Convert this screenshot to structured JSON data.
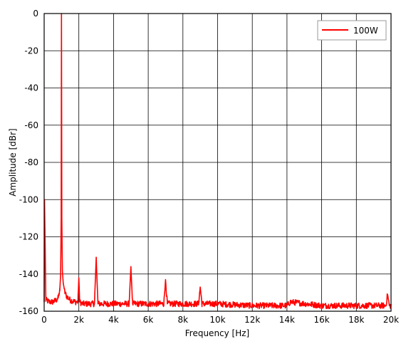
{
  "chart_data": {
    "type": "line",
    "title": "",
    "xlabel": "Frequency [Hz]",
    "ylabel": "Amplitude [dBr]",
    "xlim": [
      0,
      20000
    ],
    "ylim": [
      -160,
      0
    ],
    "x_ticks": [
      0,
      2000,
      4000,
      6000,
      8000,
      10000,
      12000,
      14000,
      16000,
      18000,
      20000
    ],
    "x_tick_labels": [
      "0",
      "2k",
      "4k",
      "6k",
      "8k",
      "10k",
      "12k",
      "14k",
      "16k",
      "18k",
      "20k"
    ],
    "y_ticks": [
      0,
      -20,
      -40,
      -60,
      -80,
      -100,
      -120,
      -140,
      -160
    ],
    "y_tick_labels": [
      "0",
      "-20",
      "-40",
      "-60",
      "-80",
      "-100",
      "-120",
      "-140",
      "-160"
    ],
    "grid": true,
    "legend": {
      "position": "top-right",
      "entries": [
        "100W"
      ]
    },
    "line_color": "#ff0000",
    "series": [
      {
        "name": "100W",
        "color": "#ff0000",
        "noise_floor_db": -156,
        "x": [
          0,
          20,
          100,
          300,
          500,
          700,
          800,
          900,
          950,
          980,
          1000,
          1020,
          1050,
          1100,
          1200,
          1300,
          1500,
          1800,
          1950,
          2000,
          2050,
          2200,
          2900,
          3000,
          3100,
          4000,
          4900,
          5000,
          5100,
          6000,
          6900,
          7000,
          7100,
          8000,
          8900,
          9000,
          9100,
          10000,
          12000,
          14000,
          14200,
          16000,
          18000,
          19700,
          19800,
          19900,
          20000
        ],
        "y": [
          -155,
          -100,
          -154,
          -155,
          -155,
          -154,
          -153,
          -149,
          -140,
          -110,
          0,
          -110,
          -138,
          -145,
          -150,
          -152,
          -154,
          -155,
          -155,
          -142,
          -155,
          -156,
          -156,
          -131,
          -156,
          -156,
          -156,
          -136,
          -156,
          -156,
          -156,
          -143,
          -156,
          -156,
          -156,
          -147,
          -156,
          -156,
          -157,
          -157,
          -155,
          -157,
          -157,
          -157,
          -151,
          -157,
          -157
        ]
      }
    ]
  }
}
